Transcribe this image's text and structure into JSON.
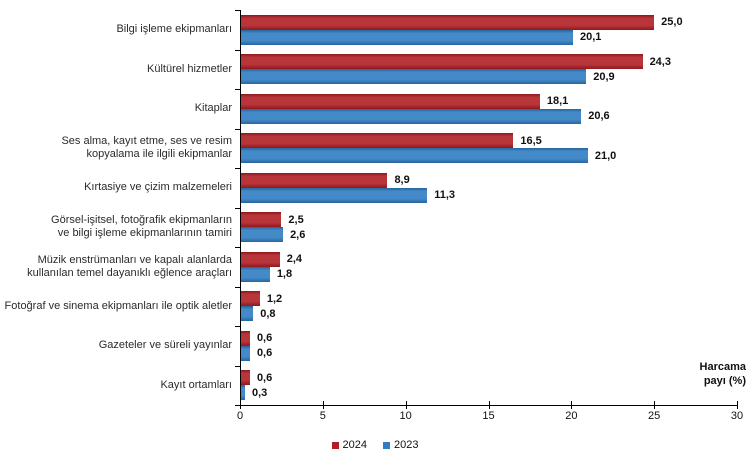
{
  "chart_data": {
    "type": "bar",
    "orientation": "horizontal",
    "title": "",
    "xlabel": "Harcama payı (%)",
    "ylabel": "",
    "xlim": [
      0,
      30
    ],
    "xticks": [
      "0",
      "5",
      "10",
      "15",
      "20",
      "25",
      "30"
    ],
    "grid": false,
    "legend_position": "bottom",
    "categories": [
      [
        "Bilgi işleme ekipmanları"
      ],
      [
        "Kültürel hizmetler"
      ],
      [
        "Kitaplar"
      ],
      [
        "Ses alma, kayıt etme, ses ve resim",
        "kopyalama ile ilgili ekipmanlar"
      ],
      [
        "Kırtasiye ve çizim malzemeleri"
      ],
      [
        "Görsel-işitsel, fotoğrafik ekipmanların",
        "ve bilgi işleme ekipmanlarının tamiri"
      ],
      [
        "Müzik enstrümanları ve kapalı alanlarda",
        "kullanılan temel dayanıklı eğlence araçları"
      ],
      [
        "Fotoğraf ve sinema ekipmanları ile optik aletler"
      ],
      [
        "Gazeteler ve süreli yayınlar"
      ],
      [
        "Kayıt ortamları"
      ]
    ],
    "series": [
      {
        "name": "2024",
        "color": "#b01e24",
        "values": [
          25.0,
          24.3,
          18.1,
          16.5,
          8.9,
          2.5,
          2.4,
          1.2,
          0.6,
          0.6
        ],
        "labels": [
          "25,0",
          "24,3",
          "18,1",
          "16,5",
          "8,9",
          "2,5",
          "2,4",
          "1,2",
          "0,6",
          "0,6"
        ]
      },
      {
        "name": "2023",
        "color": "#2f7dc3",
        "values": [
          20.1,
          20.9,
          20.6,
          21.0,
          11.3,
          2.6,
          1.8,
          0.8,
          0.6,
          0.3
        ],
        "labels": [
          "20,1",
          "20,9",
          "20,6",
          "21,0",
          "11,3",
          "2,6",
          "1,8",
          "0,8",
          "0,6",
          "0,3"
        ]
      }
    ]
  }
}
